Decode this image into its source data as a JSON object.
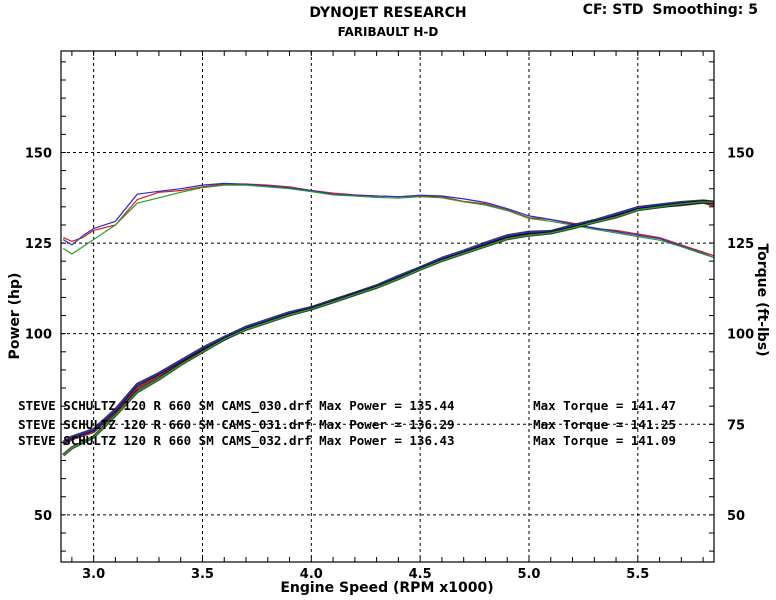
{
  "header": {
    "title": "DYNOJET RESEARCH",
    "subtitle": "FARIBAULT H-D",
    "cf_label": "CF: STD",
    "smoothing_label": "Smoothing: 5"
  },
  "colors": {
    "background": "#ffffff",
    "plot_bg": "#ffffff",
    "run_030": "#d42020",
    "run_031": "#2a2ad4",
    "run_032": "#2a9a2a",
    "power_highlight": "#000000"
  },
  "legend": [
    {
      "file": "STEVE SCHULTZ 120 R 660 SM CAMS_030.drf",
      "max_power_label": "Max Power = 135.44",
      "max_torque_label": "Max Torque = 141.47"
    },
    {
      "file": "STEVE SCHULTZ 120 R 660 SM CAMS_031.drf",
      "max_power_label": "Max Power = 136.29",
      "max_torque_label": "Max Torque = 141.25"
    },
    {
      "file": "STEVE SCHULTZ 120 R 660 SM CAMS_032.drf",
      "max_power_label": "Max Power = 136.43",
      "max_torque_label": "Max Torque = 141.09"
    }
  ],
  "chart_data": {
    "type": "line",
    "title": "DYNOJET RESEARCH",
    "subtitle": "FARIBAULT H-D",
    "xlabel": "Engine Speed (RPM x1000)",
    "ylabel_left": "Power (hp)",
    "ylabel_right": "Torque (ft-lbs)",
    "xlim": [
      2.85,
      5.85
    ],
    "ylim": [
      37,
      178
    ],
    "xticks": [
      3.0,
      3.5,
      4.0,
      4.5,
      5.0,
      5.5
    ],
    "xtick_labels": [
      "3.0",
      "3.5",
      "4.0",
      "4.5",
      "5.0",
      "5.5"
    ],
    "yticks": [
      50,
      75,
      100,
      125,
      150
    ],
    "ytick_labels_left": [
      "50",
      "",
      "100",
      "125",
      "150"
    ],
    "ytick_labels_right": [
      "50",
      "75",
      "100",
      "125",
      "150"
    ],
    "grid": true,
    "series": [
      {
        "name": "STEVE SCHULTZ 120 R 660 SM CAMS_030.drf",
        "kind": "torque",
        "color": "#d42020",
        "x": [
          2.86,
          2.9,
          2.95,
          3.0,
          3.1,
          3.2,
          3.3,
          3.4,
          3.5,
          3.6,
          3.7,
          3.8,
          3.9,
          4.0,
          4.1,
          4.2,
          4.3,
          4.4,
          4.5,
          4.6,
          4.7,
          4.8,
          4.9,
          5.0,
          5.1,
          5.2,
          5.3,
          5.4,
          5.5,
          5.6,
          5.7,
          5.8,
          5.85
        ],
        "y": [
          126.5,
          125.5,
          126.5,
          128.5,
          130,
          137,
          139,
          139.5,
          140.5,
          141.3,
          141.3,
          141,
          140.5,
          139.5,
          138.8,
          138.3,
          138,
          137.8,
          138,
          137.8,
          136.5,
          135.8,
          134.2,
          132,
          131.5,
          130.5,
          129,
          128.5,
          127.5,
          126.5,
          124.5,
          122.5,
          121.5
        ]
      },
      {
        "name": "STEVE SCHULTZ 120 R 660 SM CAMS_031.drf",
        "kind": "torque",
        "color": "#2a2ad4",
        "x": [
          2.86,
          2.9,
          2.95,
          3.0,
          3.1,
          3.2,
          3.3,
          3.4,
          3.5,
          3.6,
          3.7,
          3.8,
          3.9,
          4.0,
          4.1,
          4.2,
          4.3,
          4.4,
          4.5,
          4.6,
          4.7,
          4.8,
          4.9,
          5.0,
          5.1,
          5.2,
          5.3,
          5.4,
          5.5,
          5.6,
          5.7,
          5.8,
          5.85
        ],
        "y": [
          126,
          124.5,
          127,
          129,
          131,
          138.5,
          139.3,
          140,
          141,
          141.5,
          141.2,
          140.8,
          140.2,
          139.5,
          138.5,
          138.2,
          138,
          137.8,
          138.2,
          138,
          137.2,
          136.2,
          134.5,
          132.5,
          131.5,
          130.2,
          129.2,
          128.2,
          127.2,
          126.2,
          124.2,
          122.2,
          121
        ]
      },
      {
        "name": "STEVE SCHULTZ 120 R 660 SM CAMS_032.drf",
        "kind": "torque",
        "color": "#2a9a2a",
        "x": [
          2.86,
          2.9,
          2.95,
          3.0,
          3.1,
          3.2,
          3.3,
          3.4,
          3.5,
          3.6,
          3.7,
          3.8,
          3.9,
          4.0,
          4.1,
          4.2,
          4.3,
          4.4,
          4.5,
          4.6,
          4.7,
          4.8,
          4.9,
          5.0,
          5.1,
          5.2,
          5.3,
          5.4,
          5.5,
          5.6,
          5.7,
          5.8,
          5.85
        ],
        "y": [
          123.5,
          122,
          124,
          126,
          130,
          136,
          137.5,
          139,
          140.3,
          141,
          141,
          140.5,
          140,
          139.2,
          138.3,
          138,
          137.6,
          137.4,
          137.8,
          137.5,
          136.4,
          135.5,
          134,
          131.8,
          131,
          130,
          128.8,
          127.8,
          126.8,
          125.8,
          124,
          122,
          121
        ]
      },
      {
        "name": "STEVE SCHULTZ 120 R 660 SM CAMS_030.drf",
        "kind": "power",
        "color": "#d42020",
        "x": [
          2.86,
          2.9,
          3.0,
          3.1,
          3.2,
          3.3,
          3.4,
          3.5,
          3.6,
          3.7,
          3.8,
          3.9,
          4.0,
          4.1,
          4.2,
          4.3,
          4.4,
          4.5,
          4.6,
          4.7,
          4.8,
          4.9,
          5.0,
          5.1,
          5.2,
          5.3,
          5.4,
          5.5,
          5.6,
          5.7,
          5.8,
          5.85
        ],
        "y": [
          69.5,
          71,
          73,
          78.5,
          85,
          88.5,
          92,
          95.5,
          98.5,
          101.5,
          103.5,
          105.5,
          107,
          109,
          111,
          113,
          115.5,
          118,
          120.5,
          122.5,
          124.5,
          126.5,
          127.5,
          128,
          129.5,
          131,
          132.5,
          134.5,
          135.2,
          135.6,
          136.3,
          135.4
        ]
      },
      {
        "name": "STEVE SCHULTZ 120 R 660 SM CAMS_031.drf",
        "kind": "power",
        "color": "#2a2ad4",
        "x": [
          2.86,
          2.9,
          3.0,
          3.1,
          3.2,
          3.3,
          3.4,
          3.5,
          3.6,
          3.7,
          3.8,
          3.9,
          4.0,
          4.1,
          4.2,
          4.3,
          4.4,
          4.5,
          4.6,
          4.7,
          4.8,
          4.9,
          5.0,
          5.1,
          5.2,
          5.3,
          5.4,
          5.5,
          5.6,
          5.7,
          5.8,
          5.85
        ],
        "y": [
          70,
          71.5,
          73.5,
          79,
          86,
          89,
          92.5,
          96,
          99,
          101.8,
          103.8,
          105.8,
          107.2,
          109.2,
          111.2,
          113.2,
          115.8,
          118.2,
          120.8,
          122.8,
          125,
          127,
          128,
          128.2,
          129.8,
          131.2,
          133,
          134.8,
          135.5,
          136.2,
          136.6,
          136.3
        ]
      },
      {
        "name": "STEVE SCHULTZ 120 R 660 SM CAMS_032.drf",
        "kind": "power",
        "color": "#2a9a2a",
        "x": [
          2.86,
          2.9,
          3.0,
          3.1,
          3.2,
          3.3,
          3.4,
          3.5,
          3.6,
          3.7,
          3.8,
          3.9,
          4.0,
          4.1,
          4.2,
          4.3,
          4.4,
          4.5,
          4.6,
          4.7,
          4.8,
          4.9,
          5.0,
          5.1,
          5.2,
          5.3,
          5.4,
          5.5,
          5.6,
          5.7,
          5.8,
          5.85
        ],
        "y": [
          66.5,
          68.5,
          71.5,
          77.5,
          84,
          87.5,
          91.5,
          95,
          98.5,
          101.2,
          103.2,
          105.2,
          106.8,
          108.8,
          110.8,
          112.8,
          115.2,
          117.8,
          120.2,
          122.2,
          124.2,
          126.2,
          127.2,
          127.8,
          129.2,
          130.8,
          132.2,
          134.2,
          135,
          135.8,
          136.4,
          136.2
        ]
      }
    ]
  }
}
